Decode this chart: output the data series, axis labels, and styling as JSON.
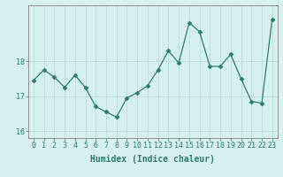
{
  "x": [
    0,
    1,
    2,
    3,
    4,
    5,
    6,
    7,
    8,
    9,
    10,
    11,
    12,
    13,
    14,
    15,
    16,
    17,
    18,
    19,
    20,
    21,
    22,
    23
  ],
  "y": [
    17.45,
    17.75,
    17.55,
    17.25,
    17.6,
    17.25,
    16.7,
    16.55,
    16.4,
    16.95,
    17.1,
    17.3,
    17.75,
    18.3,
    17.95,
    19.1,
    18.85,
    17.85,
    17.85,
    18.2,
    17.5,
    16.85,
    16.8,
    19.2
  ],
  "xlabel": "Humidex (Indice chaleur)",
  "ylabel": "",
  "xlim": [
    -0.5,
    23.5
  ],
  "ylim": [
    15.8,
    19.6
  ],
  "yticks": [
    16,
    17,
    18
  ],
  "xticks": [
    0,
    1,
    2,
    3,
    4,
    5,
    6,
    7,
    8,
    9,
    10,
    11,
    12,
    13,
    14,
    15,
    16,
    17,
    18,
    19,
    20,
    21,
    22,
    23
  ],
  "line_color": "#2e7d6e",
  "marker": "D",
  "marker_size": 2.5,
  "bg_color": "#d6f0ef",
  "grid_color": "#b8dbd9",
  "axis_color": "#808080",
  "label_color": "#2e7d6e",
  "font_size_xlabel": 7,
  "font_size_ticks": 6
}
